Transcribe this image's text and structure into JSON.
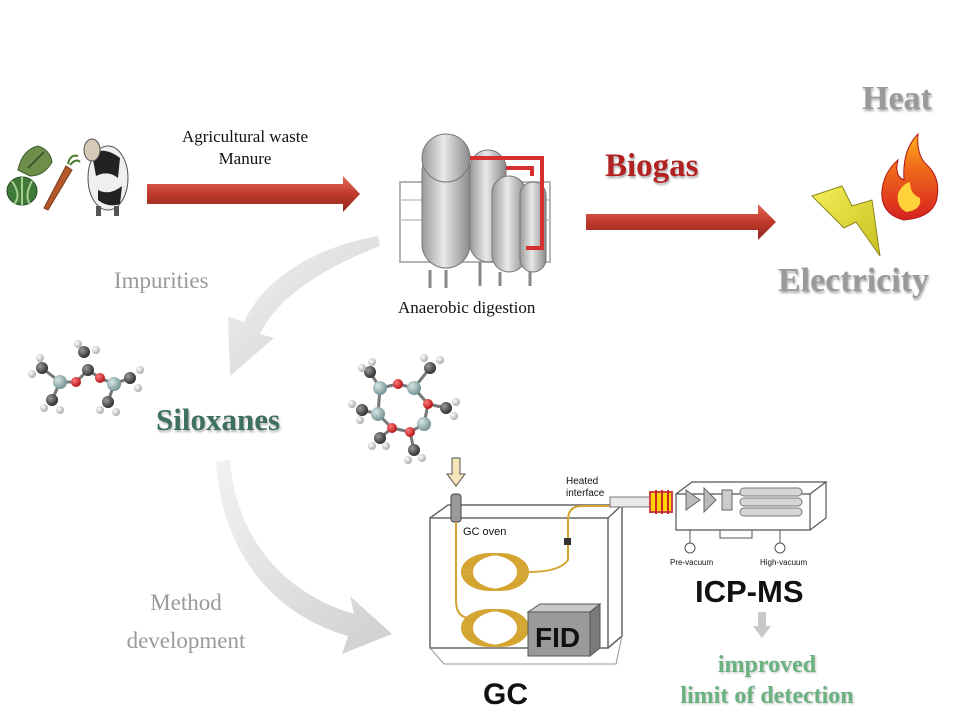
{
  "feedstock": {
    "line1": "Agricultural waste",
    "line2": "Manure"
  },
  "process": {
    "anaerobic": "Anaerobic digestion",
    "biogas": "Biogas"
  },
  "outputs": {
    "heat": "Heat",
    "electricity": "Electricity"
  },
  "impurities": {
    "label": "Impurities",
    "siloxanes": "Siloxanes"
  },
  "method": {
    "line1": "Method",
    "line2": "development"
  },
  "instrument": {
    "heated_line1": "Heated",
    "heated_line2": "interface",
    "gc_oven": "GC oven",
    "fid": "FID",
    "gc": "GC",
    "icpms": "ICP-MS",
    "pre_vacuum": "Pre-vacuum",
    "high_vacuum": "High-vacuum"
  },
  "result": {
    "line1": "improved",
    "line2": "limit of detection"
  },
  "colors": {
    "arrow_red": "#c0392b",
    "biogas_text": "#b22222",
    "grey_text": "#9a9a9a",
    "siloxanes_text": "#3d7060",
    "improved_text": "#6ab27f",
    "coil": "#d4a531"
  }
}
